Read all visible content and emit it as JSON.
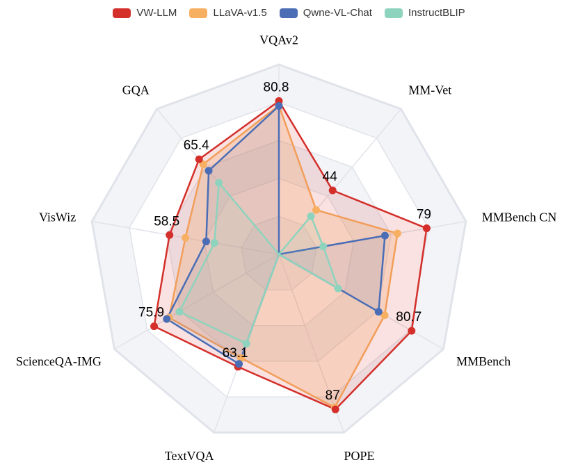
{
  "chart_data": {
    "type": "radar",
    "axes": [
      "VQAv2",
      "MM-Vet",
      "MMBench CN",
      "MMBench",
      "POPE",
      "TextVQA",
      "ScienceQA-IMG",
      "VisWiz",
      "GQA"
    ],
    "max": 100,
    "rings": 5,
    "legend_position": "top",
    "series": [
      {
        "name": "VW-LLM",
        "color": "#d42f2a",
        "values": [
          80.8,
          44,
          79,
          80.7,
          87,
          63.1,
          75.9,
          58.5,
          65.4
        ]
      },
      {
        "name": "LLaVA-v1.5",
        "color": "#f7b062",
        "values": [
          78.5,
          30.5,
          63.4,
          64.3,
          85.9,
          58.2,
          66.8,
          50.0,
          62.0
        ]
      },
      {
        "name": "Qwne-VL-Chat",
        "color": "#4a6db5",
        "values": [
          78.2,
          0,
          56.7,
          60.6,
          0,
          61.5,
          68.2,
          38.9,
          57.5
        ]
      },
      {
        "name": "InstructBLIP",
        "color": "#8ed3bd",
        "values": [
          0,
          26.2,
          23.7,
          36.0,
          0,
          50.1,
          60.5,
          34.5,
          49.2
        ]
      }
    ],
    "value_labels": [
      "80.8",
      "44",
      "79",
      "80.7",
      "87",
      "63.1",
      "75.9",
      "58.5",
      "65.4"
    ]
  }
}
